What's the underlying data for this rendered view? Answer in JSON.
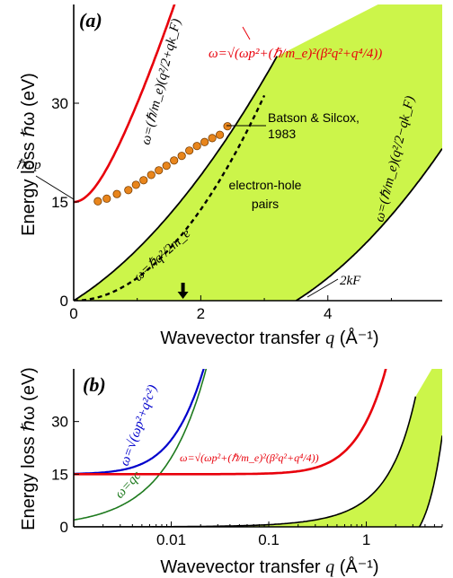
{
  "chart_data": [
    {
      "panel": "(a)",
      "type": "line",
      "xlabel_prefix": "Wavevector transfer",
      "xlabel_var": "q",
      "xlabel_unit": "(Å⁻¹)",
      "ylabel": "Energy loss ℏω (eV)",
      "xlim": [
        0,
        5.8
      ],
      "ylim": [
        0,
        45
      ],
      "xticks": [
        "0",
        "2",
        "4"
      ],
      "xtick_values": [
        0,
        2,
        4
      ],
      "yticks": [
        "0",
        "15",
        "30"
      ],
      "ytick_values": [
        0,
        15,
        30
      ],
      "region_label": "electron-hole pairs",
      "plasmon_label": "ℏωp",
      "kf_label": "2kF",
      "data_label": "Batson & Silcox, 1983",
      "eq_upper": "ω=(ℏ/m_e)(q²/2+qk_F)",
      "eq_lower": "ω=(ℏ/m_e)(q²/2−qk_F)",
      "eq_free": "ω=ℏq²/2m_e",
      "eq_plasmon": "ω=√(ωp²+(ℏ/m_e)²(β²q²+q⁴/4))",
      "arrow_q": 1.72,
      "series": [
        {
          "name": "Batson & Silcox, 1983",
          "x": [
            0.38,
            0.52,
            0.68,
            0.86,
            0.98,
            1.1,
            1.22,
            1.34,
            1.46,
            1.58,
            1.7,
            1.82,
            1.94,
            2.06,
            2.18,
            2.3,
            2.42
          ],
          "y": [
            15.1,
            15.5,
            16.2,
            16.8,
            17.6,
            18.3,
            19.1,
            19.8,
            20.5,
            21.3,
            22.0,
            22.8,
            23.5,
            24.1,
            24.7,
            25.2,
            26.5
          ]
        }
      ],
      "colors": {
        "region": "#CCF54A",
        "plasmon": "#E8000B",
        "points": "#E8851C"
      }
    },
    {
      "panel": "(b)",
      "type": "line",
      "x_scale": "log",
      "xlabel_prefix": "Wavevector transfer",
      "xlabel_var": "q",
      "xlabel_unit": "(Å⁻¹)",
      "ylabel": "Energy loss ℏω (eV)",
      "xlim": [
        0.001,
        6
      ],
      "ylim": [
        0,
        45
      ],
      "xticks": [
        "0.01",
        "0.1",
        "1"
      ],
      "xtick_values": [
        0.01,
        0.1,
        1
      ],
      "yticks": [
        "0",
        "15",
        "30"
      ],
      "ytick_values": [
        0,
        15,
        30
      ],
      "eq_photon_plasmon": "ω=√(ωp²+q²c²)",
      "eq_light": "ω=qc",
      "eq_plasmon": "ω=√(ωp²+(ℏ/m_e)²(β²q²+q⁴/4))",
      "colors": {
        "region": "#CCF54A",
        "plasmon": "#E8000B",
        "photon_plasmon": "#0000CC",
        "light": "#1E7A1E"
      }
    }
  ]
}
